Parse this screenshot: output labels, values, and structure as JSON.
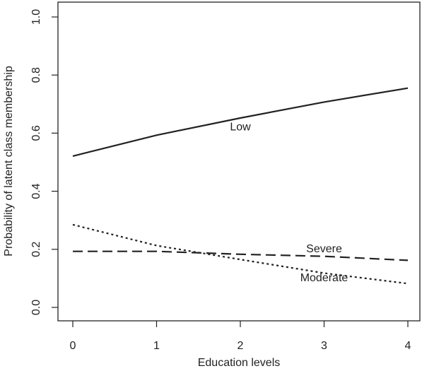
{
  "chart_data": {
    "type": "line",
    "xlabel": "Education levels",
    "ylabel": "Probability of latent class membership",
    "xlim": [
      0,
      4
    ],
    "ylim": [
      0,
      1
    ],
    "x_ticks": [
      "0",
      "1",
      "2",
      "3",
      "4"
    ],
    "y_ticks": [
      "0.0",
      "0.2",
      "0.4",
      "0.6",
      "0.8",
      "1.0"
    ],
    "grid": false,
    "x": [
      0,
      1,
      2,
      3,
      4
    ],
    "series": [
      {
        "name": "Low",
        "values": [
          0.521,
          0.593,
          0.652,
          0.707,
          0.755
        ],
        "style": "solid",
        "label_at": [
          2,
          0.61
        ]
      },
      {
        "name": "Severe",
        "values": [
          0.193,
          0.193,
          0.183,
          0.176,
          0.162
        ],
        "style": "dashed",
        "label_at": [
          3,
          0.19
        ]
      },
      {
        "name": "Moderate",
        "values": [
          0.285,
          0.213,
          0.165,
          0.118,
          0.082
        ],
        "style": "dotted",
        "label_at": [
          3,
          0.09
        ]
      }
    ]
  }
}
